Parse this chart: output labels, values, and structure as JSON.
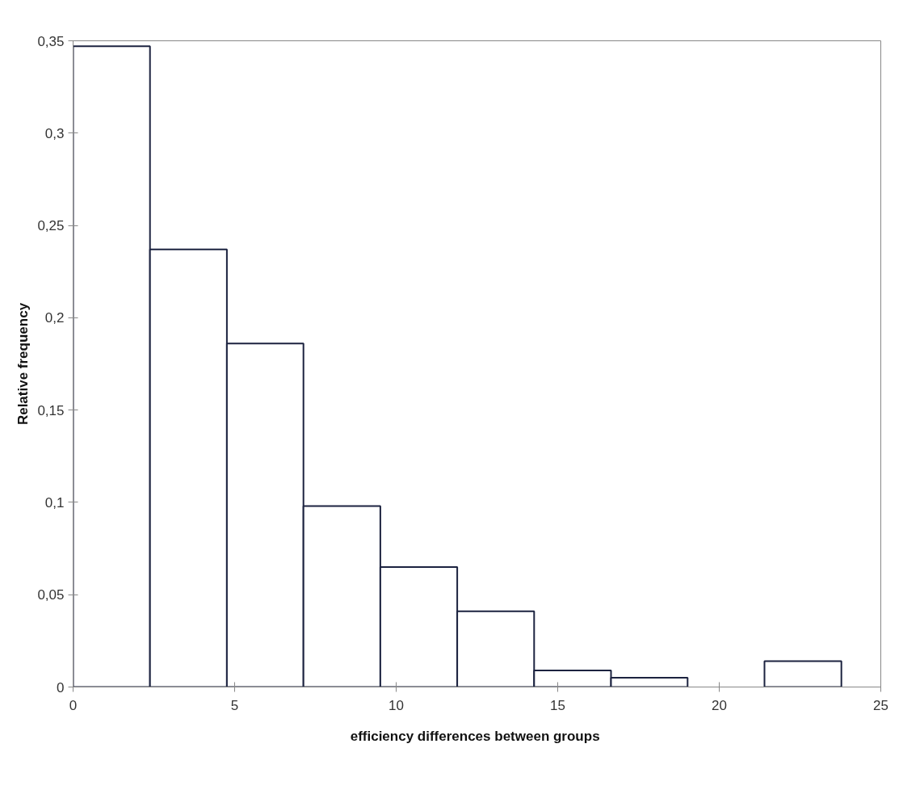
{
  "chart_data": {
    "type": "histogram",
    "xlabel": "efficiency  differences between groups",
    "ylabel": "Relative frequency",
    "bins": [
      0,
      2.38,
      4.76,
      7.13,
      9.51,
      11.89,
      14.27,
      16.65,
      19.02,
      21.4,
      23.78
    ],
    "values": [
      0.347,
      0.237,
      0.186,
      0.098,
      0.065,
      0.041,
      0.009,
      0.005,
      0,
      0.014
    ],
    "color": "#ffffff",
    "xlim": [
      0,
      25
    ],
    "xticks": [
      0,
      5,
      10,
      15,
      20,
      25
    ],
    "ylim": [
      0,
      0.35
    ],
    "yticks": [
      {
        "value": 0,
        "label": "0"
      },
      {
        "value": 0.05,
        "label": "0,05"
      },
      {
        "value": 0.1,
        "label": "0,1"
      },
      {
        "value": 0.15,
        "label": "0,15"
      },
      {
        "value": 0.2,
        "label": "0,2"
      },
      {
        "value": 0.25,
        "label": "0,25"
      },
      {
        "value": 0.3,
        "label": "0,3"
      },
      {
        "value": 0.35,
        "label": "0,35"
      }
    ],
    "grid": false
  }
}
